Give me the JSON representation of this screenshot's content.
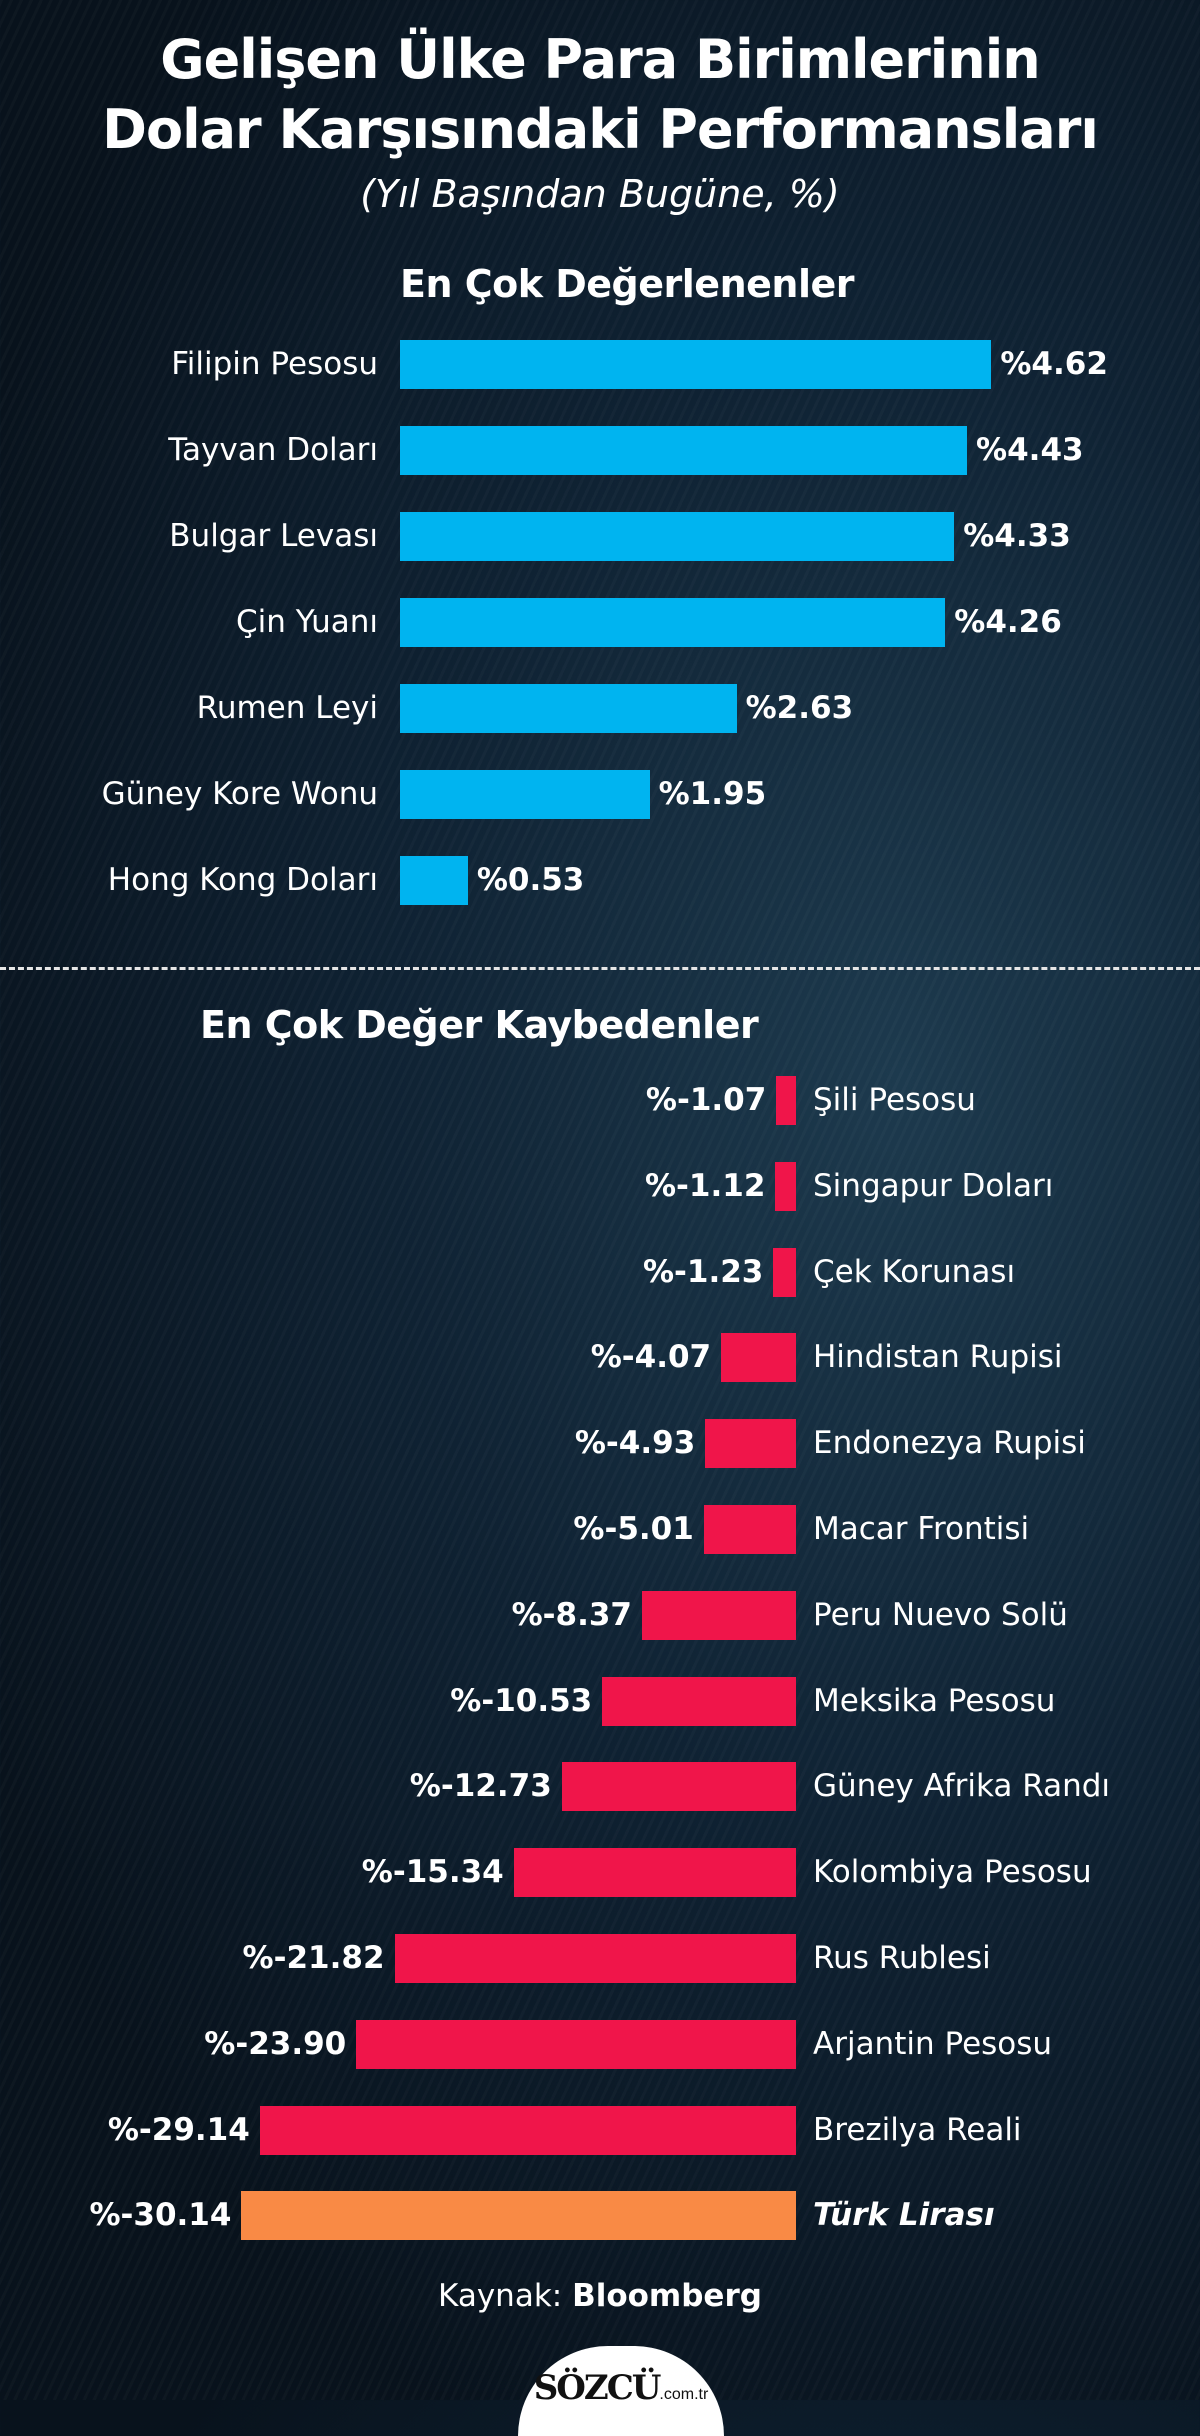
{
  "chart_data": [
    {
      "type": "bar",
      "title": "Gelişen Ülke Para Birimlerinin Dolar Karşısındaki Performansları",
      "subtitle": "(Yıl Başından Bugüne, %)",
      "section": "En Çok Değerlenenler",
      "orientation": "horizontal",
      "categories": [
        "Filipin Pesosu",
        "Tayvan Doları",
        "Bulgar Levası",
        "Çin Yuanı",
        "Rumen Leyi",
        "Güney Kore Wonu",
        "Hong Kong Doları"
      ],
      "values": [
        4.62,
        4.43,
        4.33,
        4.26,
        2.63,
        1.95,
        0.53
      ],
      "labels": [
        "%4.62",
        "%4.43",
        "%4.33",
        "%4.26",
        "%2.63",
        "%1.95",
        "%0.53"
      ],
      "color": "#00b4f0"
    },
    {
      "type": "bar",
      "section": "En Çok Değer Kaybedenler",
      "orientation": "horizontal",
      "categories": [
        "Şili Pesosu",
        "Singapur Doları",
        "Çek Korunası",
        "Hindistan Rupisi",
        "Endonezya Rupisi",
        "Macar Frontisi",
        "Peru Nuevo Solü",
        "Meksika Pesosu",
        "Güney Afrika Randı",
        "Kolombiya Pesosu",
        "Rus Rublesi",
        "Arjantin Pesosu",
        "Brezilya Reali",
        "Türk Lirası"
      ],
      "values": [
        -1.07,
        -1.12,
        -1.23,
        -4.07,
        -4.93,
        -5.01,
        -8.37,
        -10.53,
        -12.73,
        -15.34,
        -21.82,
        -23.9,
        -29.14,
        -30.14
      ],
      "labels": [
        "%-1.07",
        "%-1.12",
        "%-1.23",
        "%-4.07",
        "%-4.93",
        "%-5.01",
        "%-8.37",
        "%-10.53",
        "%-12.73",
        "%-15.34",
        "%-21.82",
        "%-23.90",
        "%-29.14",
        "%-30.14"
      ],
      "color": "#f0154a",
      "highlight": {
        "category": "Türk Lirası",
        "color": "#f98a45"
      }
    }
  ],
  "header": {
    "title_line1": "Gelişen Ülke Para Birimlerinin",
    "title_line2": "Dolar Karşısındaki Performansları",
    "subtitle": "(Yıl Başından Bugüne, %)"
  },
  "footer": {
    "source_label": "Kaynak:",
    "source_name": "Bloomberg",
    "logo_text": "SÖZCÜ",
    "logo_suffix": ".com.tr"
  }
}
